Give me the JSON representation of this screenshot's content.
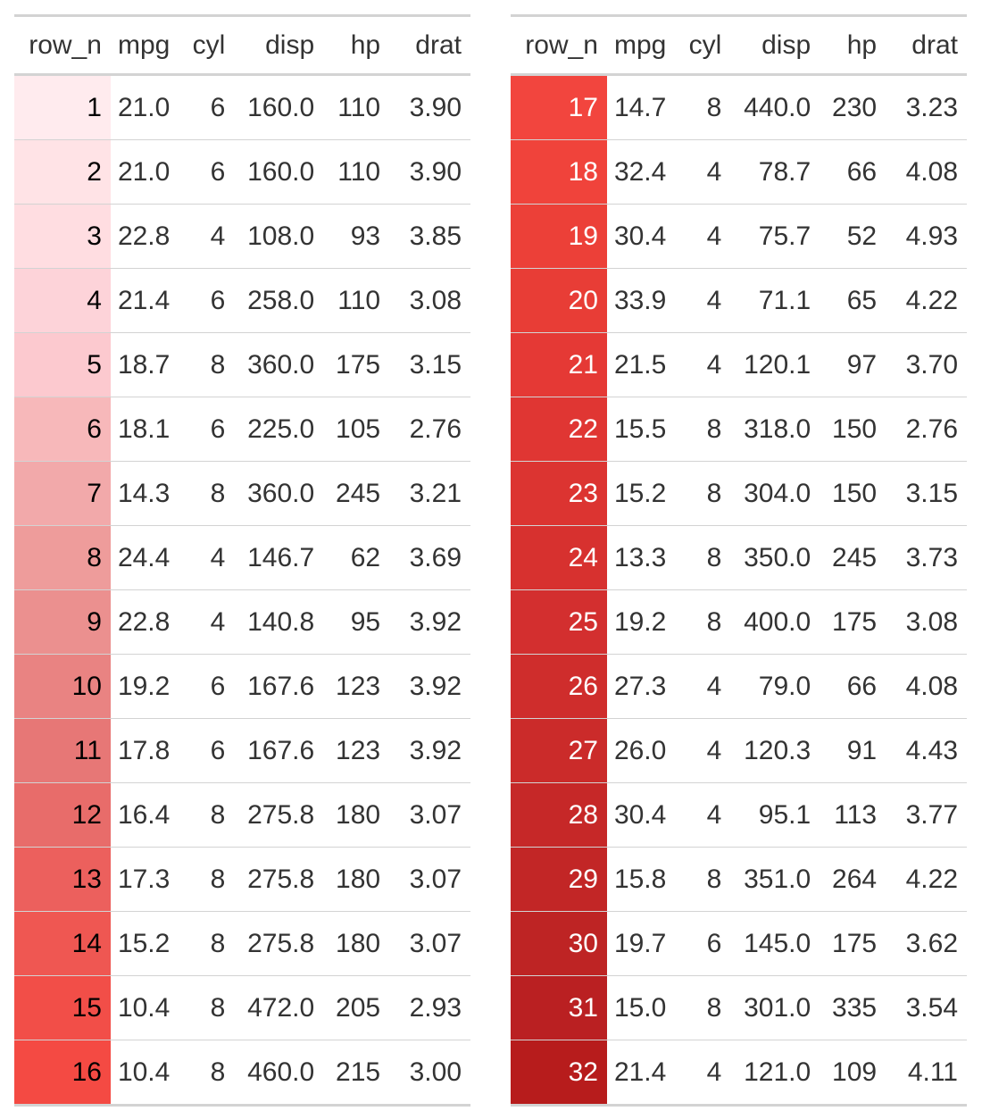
{
  "columns": [
    "row_n",
    "mpg",
    "cyl",
    "disp",
    "hp",
    "drat"
  ],
  "tables": [
    {
      "rows": [
        [
          "1",
          "21.0",
          "6",
          "160.0",
          "110",
          "3.90"
        ],
        [
          "2",
          "21.0",
          "6",
          "160.0",
          "110",
          "3.90"
        ],
        [
          "3",
          "22.8",
          "4",
          "108.0",
          "93",
          "3.85"
        ],
        [
          "4",
          "21.4",
          "6",
          "258.0",
          "110",
          "3.08"
        ],
        [
          "5",
          "18.7",
          "8",
          "360.0",
          "175",
          "3.15"
        ],
        [
          "6",
          "18.1",
          "6",
          "225.0",
          "105",
          "2.76"
        ],
        [
          "7",
          "14.3",
          "8",
          "360.0",
          "245",
          "3.21"
        ],
        [
          "8",
          "24.4",
          "4",
          "146.7",
          "62",
          "3.69"
        ],
        [
          "9",
          "22.8",
          "4",
          "140.8",
          "95",
          "3.92"
        ],
        [
          "10",
          "19.2",
          "6",
          "167.6",
          "123",
          "3.92"
        ],
        [
          "11",
          "17.8",
          "6",
          "167.6",
          "123",
          "3.92"
        ],
        [
          "12",
          "16.4",
          "8",
          "275.8",
          "180",
          "3.07"
        ],
        [
          "13",
          "17.3",
          "8",
          "275.8",
          "180",
          "3.07"
        ],
        [
          "14",
          "15.2",
          "8",
          "275.8",
          "180",
          "3.07"
        ],
        [
          "15",
          "10.4",
          "8",
          "472.0",
          "205",
          "2.93"
        ],
        [
          "16",
          "10.4",
          "8",
          "460.0",
          "215",
          "3.00"
        ]
      ],
      "row_colors": [
        "#ffebee",
        "#ffe3e6",
        "#ffdde1",
        "#fdd3d9",
        "#fcc9cf",
        "#f7b8ba",
        "#f2a9aa",
        "#ee9c9b",
        "#eb908f",
        "#e98382",
        "#e77776",
        "#e86c6a",
        "#ec605d",
        "#ef5752",
        "#f24e48",
        "#f44a43"
      ],
      "text_color": "#000000"
    },
    {
      "rows": [
        [
          "17",
          "14.7",
          "8",
          "440.0",
          "230",
          "3.23"
        ],
        [
          "18",
          "32.4",
          "4",
          "78.7",
          "66",
          "4.08"
        ],
        [
          "19",
          "30.4",
          "4",
          "75.7",
          "52",
          "4.93"
        ],
        [
          "20",
          "33.9",
          "4",
          "71.1",
          "65",
          "4.22"
        ],
        [
          "21",
          "21.5",
          "4",
          "120.1",
          "97",
          "3.70"
        ],
        [
          "22",
          "15.5",
          "8",
          "318.0",
          "150",
          "2.76"
        ],
        [
          "23",
          "15.2",
          "8",
          "304.0",
          "150",
          "3.15"
        ],
        [
          "24",
          "13.3",
          "8",
          "350.0",
          "245",
          "3.73"
        ],
        [
          "25",
          "19.2",
          "8",
          "400.0",
          "175",
          "3.08"
        ],
        [
          "26",
          "27.3",
          "4",
          "79.0",
          "66",
          "4.08"
        ],
        [
          "27",
          "26.0",
          "4",
          "120.3",
          "91",
          "4.43"
        ],
        [
          "28",
          "30.4",
          "4",
          "95.1",
          "113",
          "3.77"
        ],
        [
          "29",
          "15.8",
          "8",
          "351.0",
          "264",
          "4.22"
        ],
        [
          "30",
          "19.7",
          "6",
          "145.0",
          "175",
          "3.62"
        ],
        [
          "31",
          "15.0",
          "8",
          "301.0",
          "335",
          "3.54"
        ],
        [
          "32",
          "21.4",
          "4",
          "121.0",
          "109",
          "4.11"
        ]
      ],
      "row_colors": [
        "#f2453e",
        "#f0433b",
        "#ec4038",
        "#e83d36",
        "#e53935",
        "#e03633",
        "#dc3431",
        "#d7312f",
        "#d32f2f",
        "#cf2d2c",
        "#cb2b2a",
        "#c62828",
        "#c22626",
        "#be2424",
        "#ba2022",
        "#b71c1c"
      ],
      "text_color": "#ffffff"
    }
  ]
}
